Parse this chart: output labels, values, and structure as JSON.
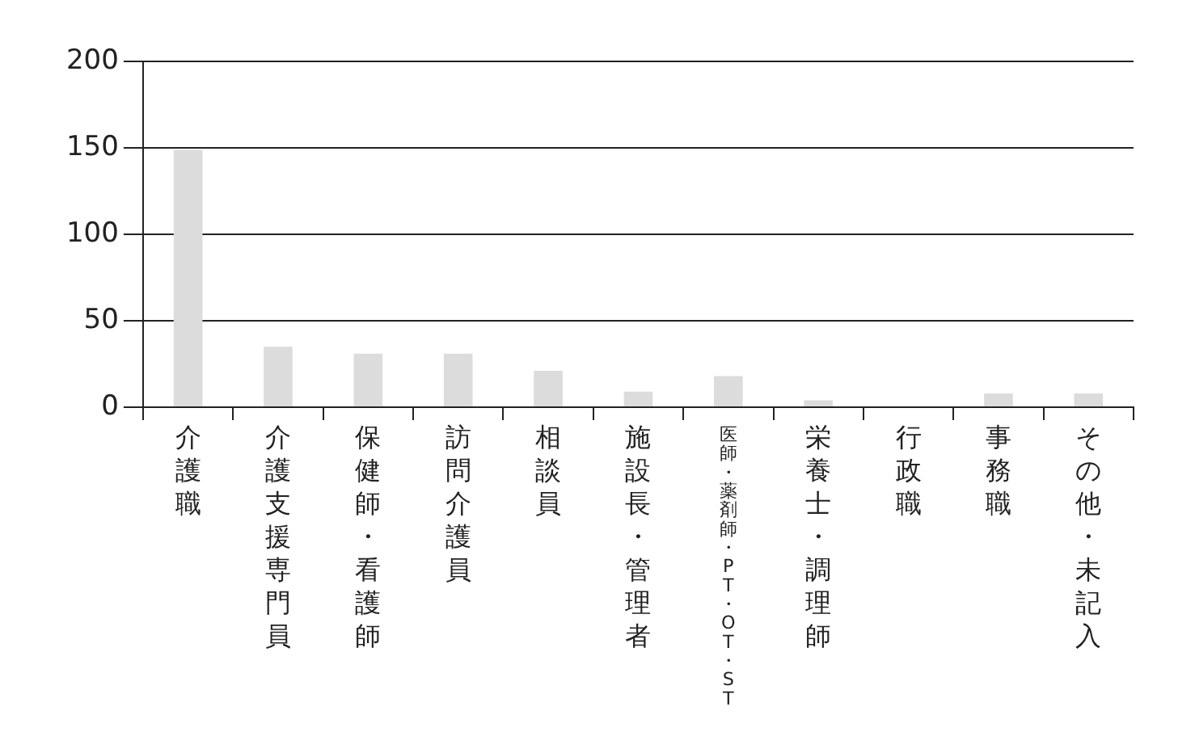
{
  "chart_data": {
    "type": "bar",
    "categories": [
      "介護職",
      "介護支援専門員",
      "保健師・看護師",
      "訪問介護員",
      "相談員",
      "施設長・管理者",
      "医師・薬剤師・PT・OT・ST",
      "栄養士・調理師",
      "行政職",
      "事務職",
      "その他・未記入"
    ],
    "values": [
      149,
      35,
      31,
      31,
      21,
      9,
      18,
      4,
      0,
      8,
      8
    ],
    "color": "#dcdcdc",
    "ylim": [
      0,
      200
    ],
    "yticks": [
      0,
      50,
      100,
      150,
      200
    ],
    "grid": "y",
    "legend": false
  }
}
